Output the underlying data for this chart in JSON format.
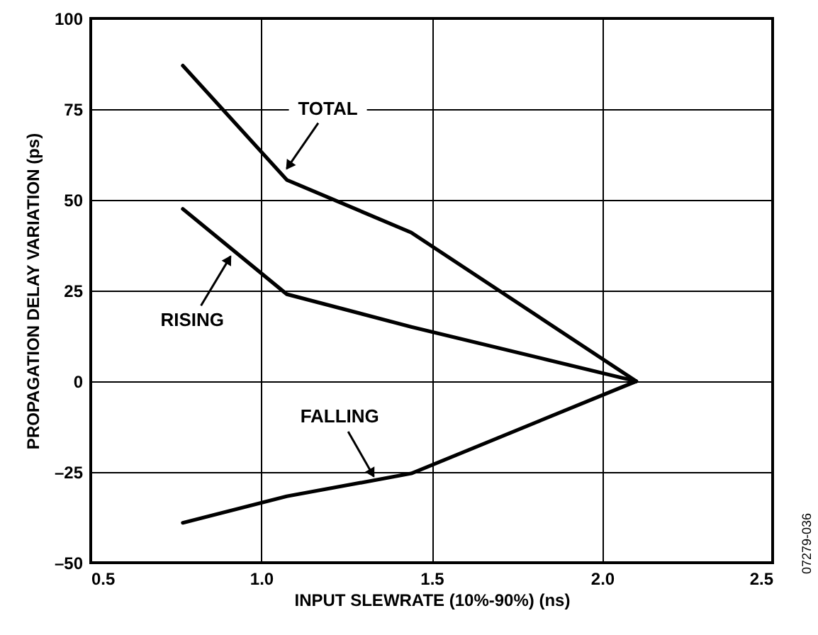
{
  "chart_data": {
    "type": "line",
    "xlabel": "INPUT SLEWRATE (10%-90%) (ns)",
    "ylabel": "PROPAGATION DELAY VARIATION (ps)",
    "xlim": [
      0.5,
      2.5
    ],
    "xticks": [
      0.5,
      {
        "value": 1,
        "label": "1.0"
      },
      1.5,
      {
        "value": 2,
        "label": "2.0"
      },
      2.5
    ],
    "ylim": [
      -50,
      100
    ],
    "yticks": [
      {
        "value": -50,
        "label": "–50"
      },
      {
        "value": -25,
        "label": "–25"
      },
      0,
      25,
      50,
      75,
      100
    ],
    "grid": true,
    "series": [
      {
        "color": "#000000",
        "x": [
          0.77,
          1.075,
          1.44,
          2.1
        ],
        "values": [
          87,
          55.5,
          41,
          0
        ]
      },
      {
        "color": "#000000",
        "x": [
          0.77,
          1.075,
          1.44,
          2.1
        ],
        "values": [
          47.5,
          24,
          15,
          0
        ]
      },
      {
        "color": "#000000",
        "x": [
          0.77,
          1.075,
          1.44,
          2.1
        ],
        "values": [
          -39,
          -31.7,
          -25.4,
          0
        ]
      }
    ],
    "annotations": [
      {
        "text": "TOTAL",
        "x": 1.075,
        "y": 58.6
      },
      {
        "text": "RISING",
        "x": 0.91,
        "y": 34.4
      },
      {
        "text": "FALLING",
        "x": 1.33,
        "y": -26.2
      },
      "07279-036"
    ]
  }
}
